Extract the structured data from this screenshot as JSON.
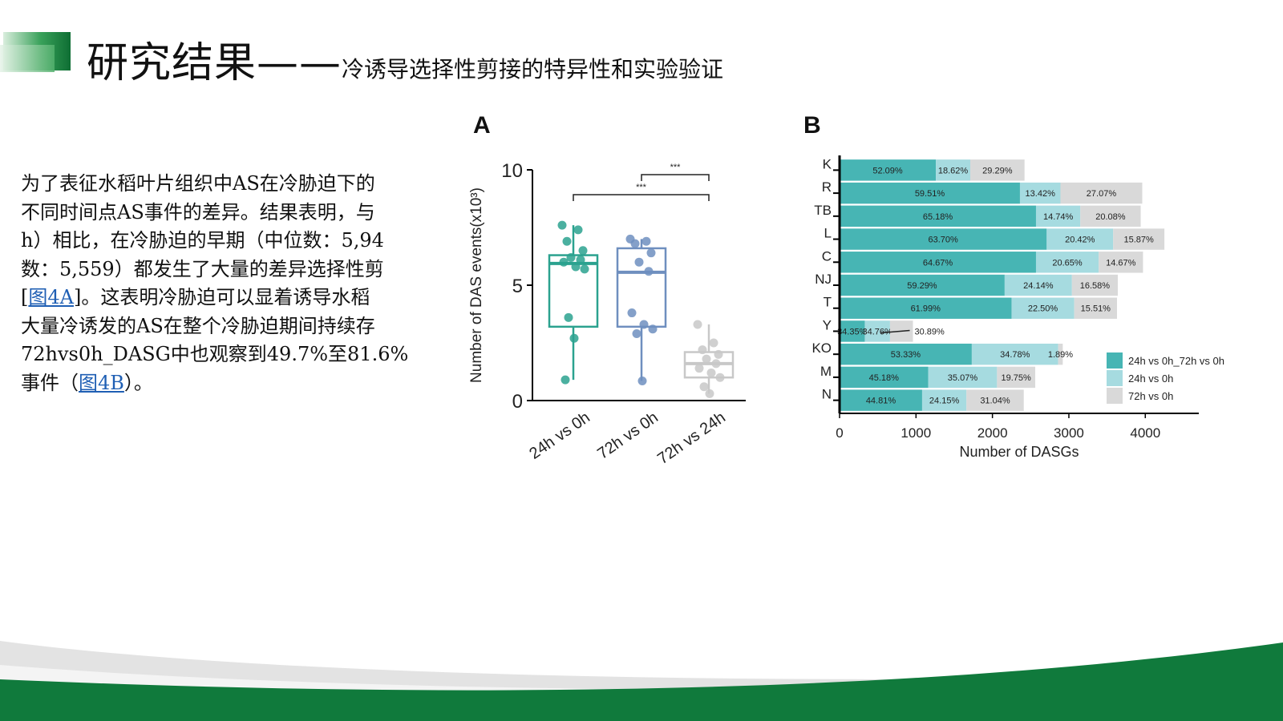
{
  "title": {
    "main": "研究结果——",
    "sub": "冷诱导选择性剪接的特异性和实验验证"
  },
  "body_text": {
    "lines": [
      "为了表征水稻叶片组织中AS在冷胁迫下的",
      "不同时间点AS事件的差异。结果表明，与",
      "h）相比，在冷胁迫的早期（中位数：5,94",
      "数：5,559）都发生了大量的差异选择性剪",
      "]。这表明冷胁迫可以显着诱导水稻",
      "大量冷诱发的AS在整个冷胁迫期间持续存",
      "72hvs0h_DASG中也观察到49.7%至81.6%",
      "事件（",
      "）。"
    ],
    "line5_prefix": "[",
    "link_4a": "图4A",
    "link_4b": "图4B"
  },
  "colors": {
    "brand_green": "#107a3c",
    "teal_dark": "#47b5b4",
    "teal_light": "#a6dbe0",
    "grey_light": "#d9d9d9",
    "box_green": "#2ba28f",
    "box_blue": "#6f8fbf",
    "box_grey": "#c8c8c8",
    "link": "#1f5fb4"
  },
  "chart_data": [
    {
      "panel_label": "A",
      "type": "box",
      "ylabel": "Number of DAS events(x10³)",
      "ylim": [
        0,
        10
      ],
      "yticks": [
        0,
        5,
        10
      ],
      "categories": [
        "24h vs 0h",
        "72h vs 0h",
        "72h vs 24h"
      ],
      "boxes": [
        {
          "name": "24h vs 0h",
          "color": "#2ba28f",
          "q1": 3.2,
          "median": 5.94,
          "q3": 6.3,
          "whisker_low": 0.9,
          "whisker_high": 7.6,
          "points": [
            7.6,
            7.4,
            6.9,
            6.5,
            6.2,
            6.1,
            6.0,
            5.8,
            5.7,
            3.6,
            2.7,
            0.9
          ]
        },
        {
          "name": "72h vs 0h",
          "color": "#6f8fbf",
          "q1": 3.2,
          "median": 5.559,
          "q3": 6.6,
          "whisker_low": 0.85,
          "whisker_high": 7.0,
          "points": [
            7.0,
            6.9,
            6.8,
            6.4,
            6.0,
            5.6,
            3.8,
            3.3,
            3.1,
            2.9,
            0.85
          ]
        },
        {
          "name": "72h vs 24h",
          "color": "#c8c8c8",
          "q1": 1.0,
          "median": 1.6,
          "q3": 2.1,
          "whisker_low": 0.3,
          "whisker_high": 3.3,
          "points": [
            3.3,
            2.5,
            2.2,
            2.0,
            1.8,
            1.6,
            1.4,
            1.2,
            1.0,
            0.6,
            0.3
          ]
        }
      ],
      "significance": [
        {
          "from": "24h vs 0h",
          "to": "72h vs 24h",
          "label": "***"
        },
        {
          "from": "72h vs 0h",
          "to": "72h vs 24h",
          "label": "***"
        }
      ]
    },
    {
      "panel_label": "B",
      "type": "bar",
      "orientation": "horizontal",
      "stacked": true,
      "xlabel": "Number of DASGs",
      "xlim": [
        0,
        4700
      ],
      "xticks": [
        0,
        1000,
        2000,
        3000,
        4000
      ],
      "categories": [
        "K",
        "R",
        "TB",
        "L",
        "C",
        "NJ",
        "T",
        "Y",
        "KO",
        "M",
        "N"
      ],
      "legend_position": "right",
      "series": [
        {
          "name": "24h vs 0h_72h vs 0h",
          "color": "#47b5b4",
          "values": [
            1260,
            2360,
            2570,
            2710,
            2570,
            2160,
            2250,
            330,
            1730,
            1160,
            1080
          ],
          "labels": [
            "52.09%",
            "59.51%",
            "65.18%",
            "63.70%",
            "64.67%",
            "59.29%",
            "61.99%",
            "34.35%",
            "53.33%",
            "45.18%",
            "44.81%"
          ]
        },
        {
          "name": "24h vs 0h",
          "color": "#a6dbe0",
          "values": [
            450,
            530,
            580,
            870,
            820,
            880,
            820,
            330,
            1130,
            900,
            580
          ],
          "labels": [
            "18.62%",
            "13.42%",
            "14.74%",
            "20.42%",
            "20.65%",
            "24.14%",
            "22.50%",
            "34.76%",
            "34.78%",
            "35.07%",
            "24.15%"
          ]
        },
        {
          "name": "72h vs 0h",
          "color": "#d9d9d9",
          "values": [
            710,
            1070,
            790,
            670,
            580,
            600,
            560,
            300,
            60,
            500,
            750
          ],
          "labels": [
            "29.29%",
            "27.07%",
            "20.08%",
            "15.87%",
            "14.67%",
            "16.58%",
            "15.51%",
            "30.89%",
            "1.89%",
            "19.75%",
            "31.04%"
          ]
        }
      ]
    }
  ]
}
